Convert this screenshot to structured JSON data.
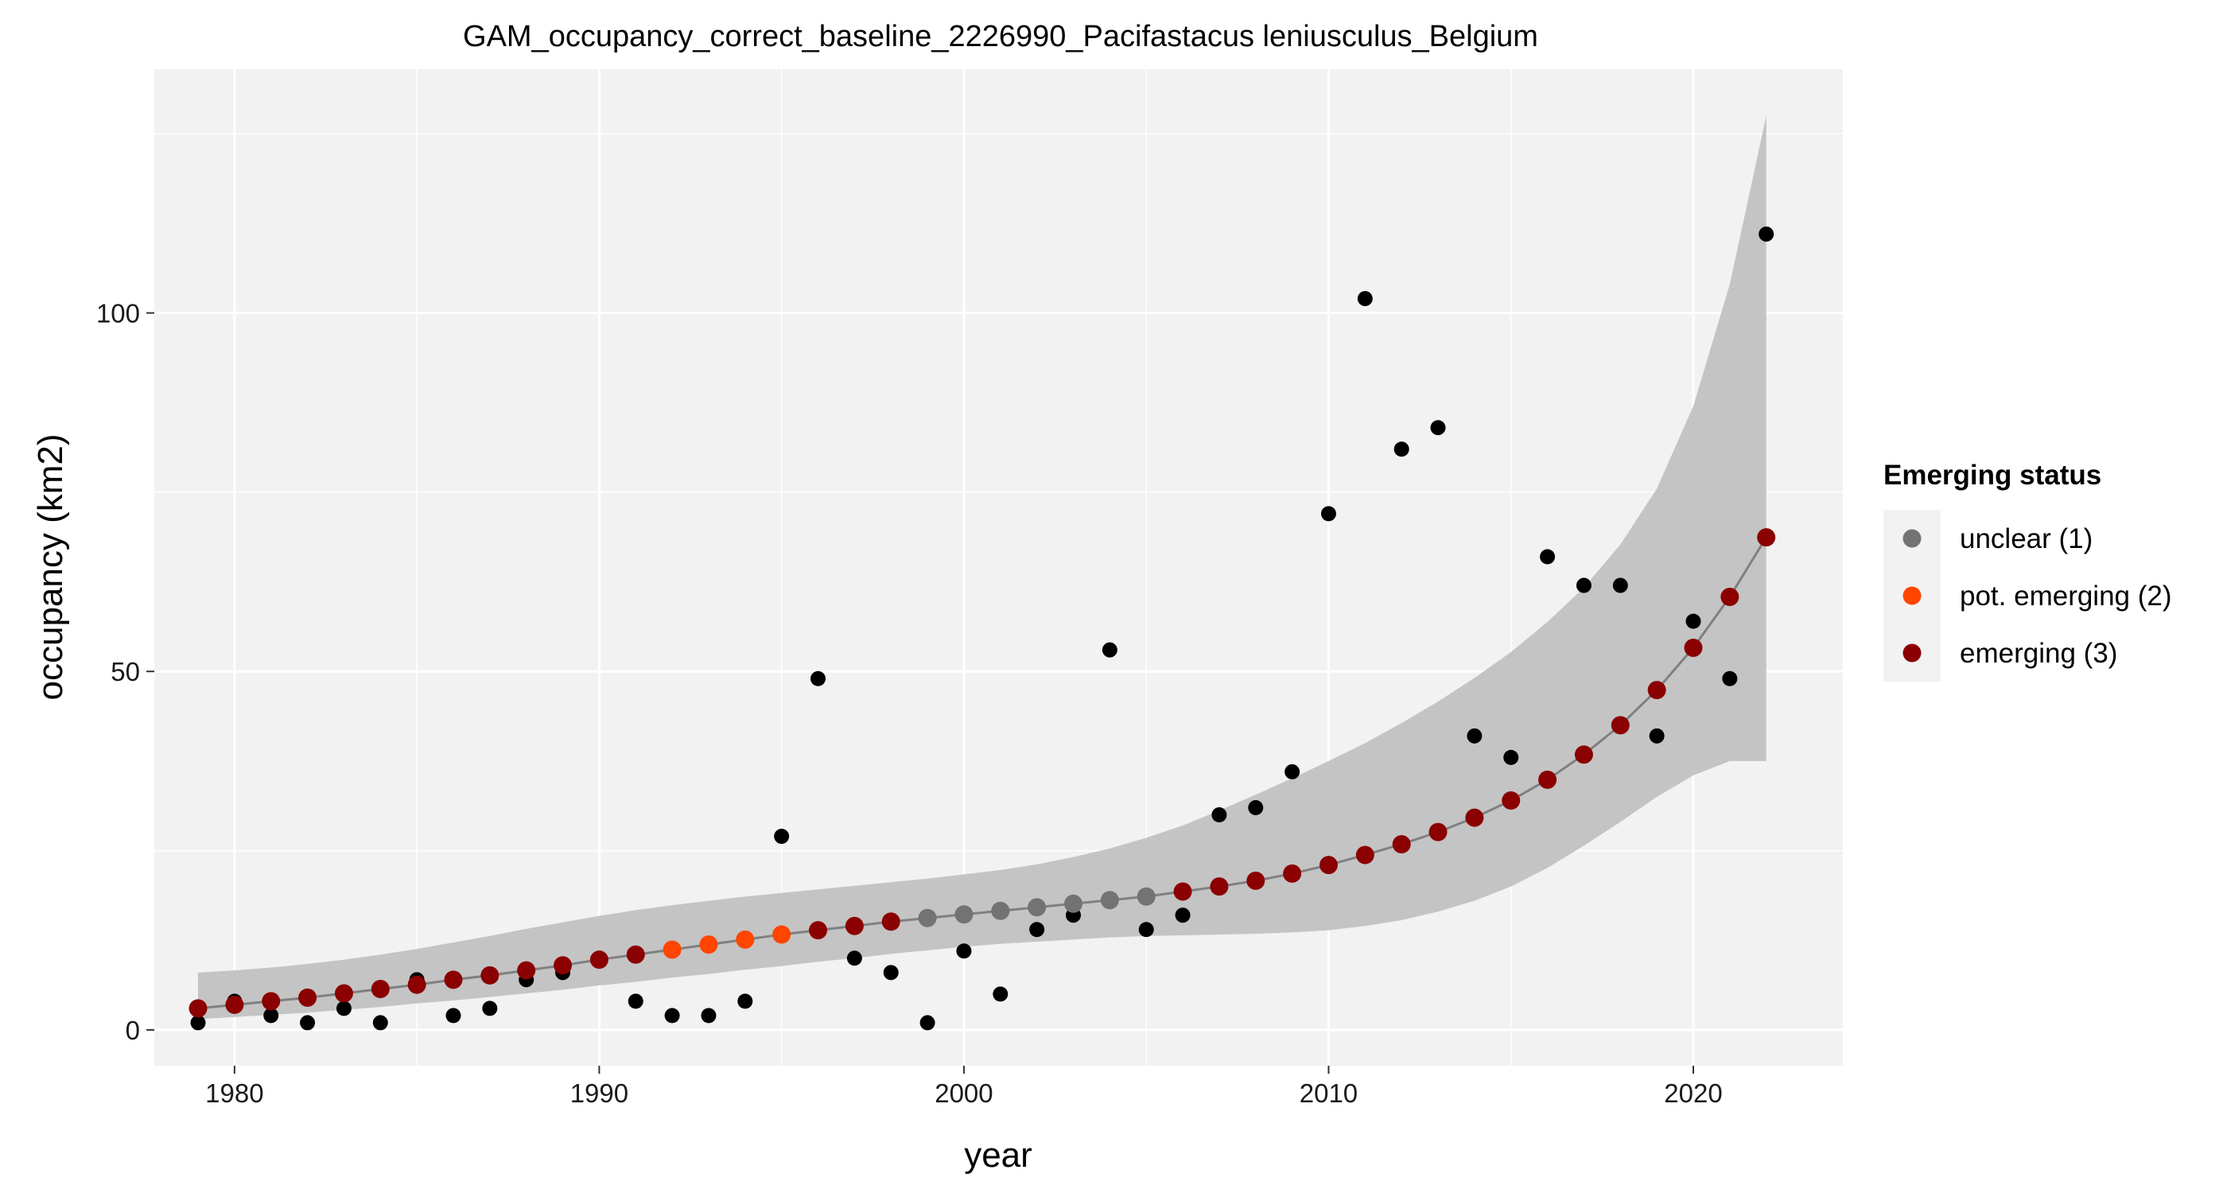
{
  "chart_data": {
    "type": "scatter",
    "title": "GAM_occupancy_correct_baseline_2226990_Pacifastacus leniusculus_Belgium",
    "xlabel": "year",
    "ylabel": "occupancy (km2)",
    "xlim": [
      1977.8,
      2024.1
    ],
    "ylim": [
      -5,
      134
    ],
    "xticks": [
      1980,
      1990,
      2000,
      2010,
      2020
    ],
    "yticks": [
      0,
      50,
      100
    ],
    "grid": true,
    "panel_background": "#f2f2f2",
    "legend": {
      "title": "Emerging status",
      "placement": "right",
      "entries": [
        {
          "label": "unclear (1)",
          "color": "#737373"
        },
        {
          "label": "pot. emerging (2)",
          "color": "#ff4500"
        },
        {
          "label": "emerging (3)",
          "color": "#8b0000"
        }
      ]
    },
    "observed": {
      "color": "#000000",
      "x": [
        1979,
        1980,
        1981,
        1982,
        1983,
        1984,
        1985,
        1986,
        1987,
        1988,
        1989,
        1990,
        1991,
        1992,
        1993,
        1994,
        1995,
        1996,
        1997,
        1998,
        1999,
        2000,
        2001,
        2002,
        2003,
        2004,
        2005,
        2006,
        2007,
        2008,
        2009,
        2010,
        2011,
        2012,
        2013,
        2014,
        2015,
        2016,
        2017,
        2018,
        2019,
        2020,
        2021,
        2022
      ],
      "y": [
        1,
        4,
        2,
        1,
        3,
        1,
        7,
        2,
        3,
        7,
        8,
        10,
        4,
        2,
        2,
        4,
        27,
        49,
        10,
        8,
        1,
        11,
        5,
        14,
        16,
        53,
        14,
        16,
        30,
        31,
        36,
        72,
        102,
        81,
        84,
        41,
        38,
        66,
        62,
        62,
        41,
        57,
        49,
        111
      ]
    },
    "fitted": {
      "line_color": "#808080",
      "band_color": "#c4c4c4",
      "x": [
        1979,
        1980,
        1981,
        1982,
        1983,
        1984,
        1985,
        1986,
        1987,
        1988,
        1989,
        1990,
        1991,
        1992,
        1993,
        1994,
        1995,
        1996,
        1997,
        1998,
        1999,
        2000,
        2001,
        2002,
        2003,
        2004,
        2005,
        2006,
        2007,
        2008,
        2009,
        2010,
        2011,
        2012,
        2013,
        2014,
        2015,
        2016,
        2017,
        2018,
        2019,
        2020,
        2021,
        2022
      ],
      "y": [
        3.0,
        3.5,
        4.0,
        4.5,
        5.1,
        5.7,
        6.3,
        7.0,
        7.6,
        8.3,
        9.0,
        9.8,
        10.5,
        11.2,
        11.9,
        12.6,
        13.3,
        13.9,
        14.5,
        15.1,
        15.6,
        16.1,
        16.6,
        17.1,
        17.6,
        18.1,
        18.6,
        19.3,
        20.0,
        20.8,
        21.8,
        23.0,
        24.4,
        25.9,
        27.6,
        29.6,
        32.0,
        34.9,
        38.4,
        42.5,
        47.4,
        53.3,
        60.4,
        68.7
      ],
      "lower": [
        1.5,
        1.8,
        2.1,
        2.4,
        2.8,
        3.2,
        3.7,
        4.1,
        4.6,
        5.1,
        5.6,
        6.2,
        6.7,
        7.3,
        7.8,
        8.4,
        8.9,
        9.5,
        10.0,
        10.6,
        11.1,
        11.6,
        12.0,
        12.3,
        12.6,
        12.9,
        13.1,
        13.2,
        13.3,
        13.4,
        13.6,
        13.9,
        14.5,
        15.3,
        16.5,
        18.0,
        20.0,
        22.6,
        25.7,
        29.0,
        32.5,
        35.5,
        37.5,
        37.5
      ],
      "upper": [
        8.0,
        8.3,
        8.7,
        9.2,
        9.8,
        10.5,
        11.3,
        12.2,
        13.1,
        14.1,
        15.0,
        15.9,
        16.7,
        17.4,
        18.0,
        18.6,
        19.1,
        19.6,
        20.1,
        20.6,
        21.1,
        21.7,
        22.3,
        23.1,
        24.1,
        25.3,
        26.8,
        28.5,
        30.6,
        32.8,
        35.1,
        37.5,
        40.0,
        42.8,
        45.8,
        49.1,
        52.7,
        56.9,
        61.7,
        67.7,
        75.5,
        87.0,
        104.0,
        127.5
      ]
    },
    "emerging_status": [
      3,
      3,
      3,
      3,
      3,
      3,
      3,
      3,
      3,
      3,
      3,
      3,
      3,
      2,
      2,
      2,
      2,
      3,
      3,
      3,
      1,
      1,
      1,
      1,
      1,
      1,
      1,
      3,
      3,
      3,
      3,
      3,
      3,
      3,
      3,
      3,
      3,
      3,
      3,
      3,
      3,
      3,
      3,
      3
    ]
  }
}
